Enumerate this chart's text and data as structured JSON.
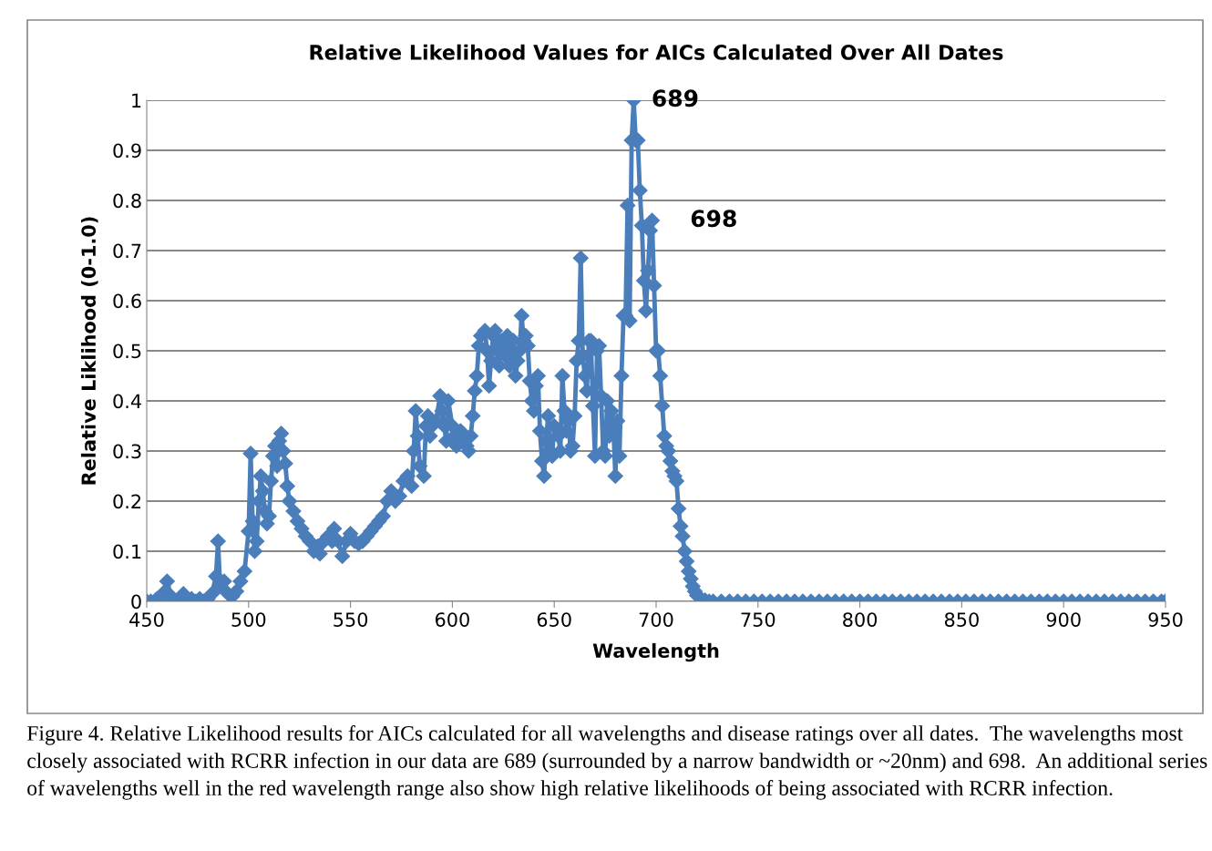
{
  "chart_data": {
    "type": "line",
    "title": "Relative Likelihood Values for AICs Calculated Over All Dates",
    "xlabel": "Wavelength",
    "ylabel": "Relative Liklihood (0-1.0)",
    "xlim": [
      450,
      950
    ],
    "xticks": [
      450,
      500,
      550,
      600,
      650,
      700,
      750,
      800,
      850,
      900,
      950
    ],
    "ylim": [
      0,
      1
    ],
    "yticks": [
      0,
      0.1,
      0.2,
      0.3,
      0.4,
      0.5,
      0.6,
      0.7,
      0.8,
      0.9,
      1
    ],
    "grid": "y",
    "marker": "diamond",
    "line_style": "solid",
    "legend": false,
    "series": [
      {
        "color": "#4a7ebb",
        "x": [
          450,
          452,
          455,
          457,
          459,
          460,
          462,
          464,
          466,
          468,
          470,
          472,
          474,
          476,
          478,
          480,
          482,
          484,
          485,
          486,
          488,
          490,
          492,
          494,
          496,
          498,
          500,
          501,
          502,
          503,
          504,
          505,
          506,
          507,
          508,
          509,
          510,
          511,
          512,
          513,
          514,
          515,
          516,
          517,
          518,
          519,
          520,
          522,
          524,
          526,
          528,
          530,
          532,
          534,
          535,
          537,
          539,
          541,
          542,
          544,
          546,
          548,
          550,
          552,
          554,
          556,
          558,
          560,
          562,
          564,
          566,
          568,
          570,
          572,
          574,
          576,
          578,
          580,
          581,
          582,
          583,
          584,
          586,
          587,
          588,
          589,
          590,
          592,
          594,
          595,
          596,
          597,
          598,
          600,
          601,
          602,
          604,
          606,
          607,
          608,
          609,
          610,
          611,
          612,
          613,
          614,
          616,
          617,
          618,
          619,
          620,
          621,
          622,
          623,
          624,
          626,
          627,
          628,
          629,
          630,
          631,
          632,
          633,
          634,
          635,
          636,
          637,
          638,
          639,
          640,
          641,
          642,
          643,
          644,
          645,
          646,
          647,
          648,
          649,
          650,
          652,
          653,
          654,
          655,
          656,
          657,
          658,
          659,
          660,
          661,
          662,
          663,
          664,
          665,
          666,
          667,
          668,
          669,
          670,
          671,
          672,
          673,
          674,
          675,
          676,
          677,
          678,
          679,
          680,
          681,
          682,
          683,
          684,
          685,
          686,
          687,
          688,
          689,
          690,
          691,
          692,
          693,
          694,
          695,
          696,
          697,
          698,
          699,
          700,
          701,
          702,
          703,
          704,
          705,
          706,
          707,
          708,
          709,
          710,
          711,
          712,
          713,
          714,
          715,
          716,
          717,
          718,
          719,
          720,
          722,
          724,
          726,
          728,
          732,
          736,
          740,
          744,
          748,
          752,
          756,
          760,
          764,
          768,
          772,
          776,
          780,
          784,
          788,
          792,
          796,
          800,
          804,
          808,
          812,
          816,
          820,
          824,
          828,
          832,
          836,
          840,
          844,
          848,
          852,
          856,
          860,
          864,
          868,
          872,
          876,
          880,
          884,
          888,
          892,
          896,
          900,
          904,
          908,
          912,
          916,
          920,
          924,
          928,
          932,
          936,
          940,
          944,
          948,
          950
        ],
        "values": [
          0,
          0,
          0.005,
          0,
          0.02,
          0.04,
          0.01,
          0,
          0.005,
          0.015,
          0,
          0.005,
          0,
          0.005,
          0,
          0.005,
          0.015,
          0.05,
          0.12,
          0.03,
          0.04,
          0.015,
          0.01,
          0.02,
          0.04,
          0.06,
          0.14,
          0.295,
          0.16,
          0.1,
          0.12,
          0.2,
          0.25,
          0.22,
          0.18,
          0.155,
          0.17,
          0.24,
          0.29,
          0.31,
          0.27,
          0.32,
          0.335,
          0.3,
          0.275,
          0.23,
          0.2,
          0.18,
          0.16,
          0.145,
          0.13,
          0.12,
          0.1,
          0.11,
          0.095,
          0.12,
          0.13,
          0.12,
          0.145,
          0.12,
          0.09,
          0.12,
          0.135,
          0.12,
          0.115,
          0.12,
          0.13,
          0.14,
          0.15,
          0.16,
          0.17,
          0.2,
          0.22,
          0.2,
          0.21,
          0.24,
          0.25,
          0.23,
          0.3,
          0.38,
          0.33,
          0.27,
          0.25,
          0.35,
          0.37,
          0.33,
          0.35,
          0.36,
          0.41,
          0.38,
          0.35,
          0.32,
          0.4,
          0.35,
          0.33,
          0.31,
          0.34,
          0.32,
          0.31,
          0.3,
          0.33,
          0.37,
          0.42,
          0.45,
          0.51,
          0.53,
          0.54,
          0.5,
          0.43,
          0.48,
          0.53,
          0.54,
          0.5,
          0.47,
          0.52,
          0.49,
          0.53,
          0.47,
          0.5,
          0.52,
          0.45,
          0.48,
          0.5,
          0.57,
          0.52,
          0.53,
          0.51,
          0.44,
          0.4,
          0.38,
          0.43,
          0.45,
          0.34,
          0.28,
          0.25,
          0.32,
          0.37,
          0.3,
          0.29,
          0.35,
          0.33,
          0.3,
          0.45,
          0.38,
          0.34,
          0.36,
          0.3,
          0.31,
          0.37,
          0.48,
          0.52,
          0.685,
          0.49,
          0.45,
          0.42,
          0.52,
          0.52,
          0.39,
          0.29,
          0.5,
          0.51,
          0.41,
          0.3,
          0.29,
          0.4,
          0.33,
          0.38,
          0.35,
          0.25,
          0.36,
          0.29,
          0.45,
          0.57,
          0.57,
          0.79,
          0.56,
          0.92,
          1,
          0.92,
          0.92,
          0.82,
          0.75,
          0.64,
          0.58,
          0.66,
          0.74,
          0.76,
          0.63,
          0.5,
          0.5,
          0.45,
          0.39,
          0.33,
          0.31,
          0.3,
          0.28,
          0.26,
          0.25,
          0.24,
          0.185,
          0.15,
          0.13,
          0.1,
          0.08,
          0.06,
          0.045,
          0.03,
          0.02,
          0.012,
          0.005,
          0.002,
          0,
          0,
          0,
          0,
          0,
          0,
          0,
          0,
          0,
          0,
          0,
          0,
          0,
          0,
          0,
          0,
          0,
          0,
          0,
          0,
          0,
          0,
          0,
          0,
          0,
          0,
          0,
          0,
          0,
          0,
          0,
          0,
          0,
          0,
          0,
          0,
          0,
          0,
          0,
          0,
          0,
          0,
          0,
          0,
          0,
          0,
          0,
          0,
          0,
          0,
          0,
          0,
          0,
          0,
          0,
          0,
          0,
          0
        ]
      }
    ],
    "annotations": [
      {
        "text": "689",
        "x": 689,
        "y": 1
      },
      {
        "text": "698",
        "x": 698,
        "y": 0.76
      },
      "Figure 4. Relative Likelihood results for AICs calculated for all wavelengths and disease ratings over all dates.  The wavelengths most closely associated with RCRR infection in our data are 689 (surrounded by a narrow bandwidth or ~20nm) and 698.  An additional series of wavelengths well in the red wavelength range also show high relative likelihoods of being associated with RCRR infection."
    ]
  }
}
